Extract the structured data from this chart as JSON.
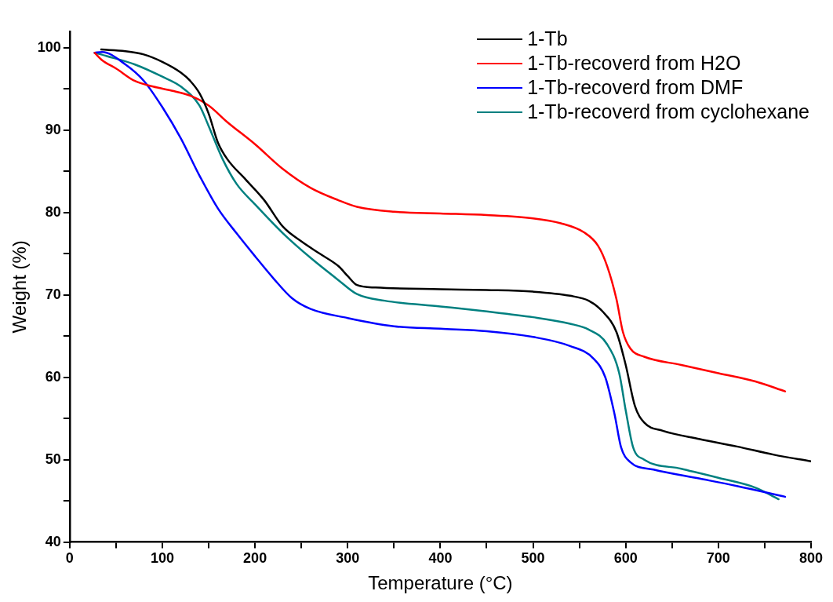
{
  "chart_data": {
    "type": "line",
    "xlabel": "Temperature (°C)",
    "ylabel": "Weight (%)",
    "xlim": [
      0,
      800
    ],
    "xticks": [
      0,
      {
        "value": 50,
        "label": null
      },
      100,
      {
        "value": 150,
        "label": null
      },
      200,
      {
        "value": 250,
        "label": null
      },
      300,
      {
        "value": 350,
        "label": null
      },
      400,
      {
        "value": 450,
        "label": null
      },
      500,
      {
        "value": 550,
        "label": null
      },
      600,
      {
        "value": 650,
        "label": null
      },
      700,
      {
        "value": 750,
        "label": null
      },
      800
    ],
    "ylim": [
      40,
      102
    ],
    "yticks": [
      40,
      {
        "value": 45,
        "label": null
      },
      50,
      {
        "value": 55,
        "label": null
      },
      60,
      {
        "value": 65,
        "label": null
      },
      70,
      {
        "value": 75,
        "label": null
      },
      80,
      {
        "value": 85,
        "label": null
      },
      90,
      {
        "value": 95,
        "label": null
      },
      100
    ],
    "grid": false,
    "legend": "top right",
    "marker": "none",
    "line_style": "solid",
    "series": [
      {
        "name": "1-Tb",
        "color": "#000000",
        "x": [
          34,
          60,
          80,
          100,
          120,
          130,
          140,
          150,
          160,
          170,
          190,
          210,
          230,
          250,
          270,
          290,
          300,
          310,
          330,
          400,
          450,
          500,
          540,
          560,
          575,
          590,
          600,
          610,
          620,
          640,
          680,
          720,
          760,
          800
        ],
        "values": [
          99.8,
          99.6,
          99.2,
          98.3,
          97.0,
          96.0,
          94.5,
          92.0,
          88.5,
          86.5,
          84.0,
          81.5,
          78.3,
          76.5,
          75.0,
          73.5,
          72.3,
          71.2,
          70.9,
          70.7,
          70.6,
          70.4,
          69.9,
          69.3,
          68.0,
          65.5,
          61.5,
          56.5,
          54.5,
          53.5,
          52.5,
          51.6,
          50.6,
          49.8
        ]
      },
      {
        "name": "1-Tb-recoverd from H2O",
        "color": "#ff0000",
        "x": [
          27,
          35,
          50,
          70,
          90,
          110,
          130,
          150,
          170,
          200,
          230,
          260,
          290,
          310,
          350,
          400,
          450,
          500,
          530,
          555,
          570,
          580,
          590,
          597,
          605,
          620,
          660,
          700,
          740,
          772
        ],
        "values": [
          99.4,
          98.5,
          97.5,
          96.0,
          95.3,
          94.8,
          94.2,
          93.0,
          91.0,
          88.3,
          85.3,
          83.0,
          81.5,
          80.7,
          80.1,
          79.9,
          79.7,
          79.3,
          78.7,
          77.6,
          76.0,
          73.5,
          69.5,
          65.5,
          63.5,
          62.5,
          61.5,
          60.5,
          59.5,
          58.3
        ]
      },
      {
        "name": "1-Tb-recoverd from DMF",
        "color": "#0000ff",
        "x": [
          27,
          35,
          60,
          80,
          100,
          120,
          140,
          160,
          180,
          200,
          220,
          240,
          260,
          300,
          350,
          400,
          450,
          500,
          540,
          565,
          578,
          588,
          595,
          605,
          630,
          680,
          720,
          772
        ],
        "values": [
          99.4,
          99.5,
          98.0,
          96.0,
          92.8,
          89.0,
          84.5,
          80.5,
          77.5,
          74.7,
          72.0,
          69.6,
          68.3,
          67.2,
          66.2,
          65.9,
          65.6,
          64.9,
          63.8,
          62.3,
          60.0,
          55.5,
          51.5,
          49.7,
          48.8,
          47.7,
          46.8,
          45.5
        ]
      },
      {
        "name": "1-Tb-recoverd from cyclohexane",
        "color": "#008080",
        "x": [
          27,
          40,
          70,
          100,
          120,
          140,
          150,
          165,
          180,
          200,
          230,
          260,
          290,
          310,
          340,
          400,
          450,
          500,
          540,
          560,
          580,
          593,
          600,
          608,
          620,
          660,
          700,
          740,
          765
        ],
        "values": [
          99.4,
          99.0,
          98.0,
          96.5,
          95.3,
          93.0,
          90.5,
          86.5,
          83.5,
          81.0,
          77.5,
          74.5,
          71.8,
          70.1,
          69.3,
          68.6,
          68.0,
          67.3,
          66.5,
          65.8,
          64.0,
          60.5,
          56.0,
          51.5,
          50.0,
          48.9,
          47.8,
          46.6,
          45.2
        ]
      }
    ]
  }
}
